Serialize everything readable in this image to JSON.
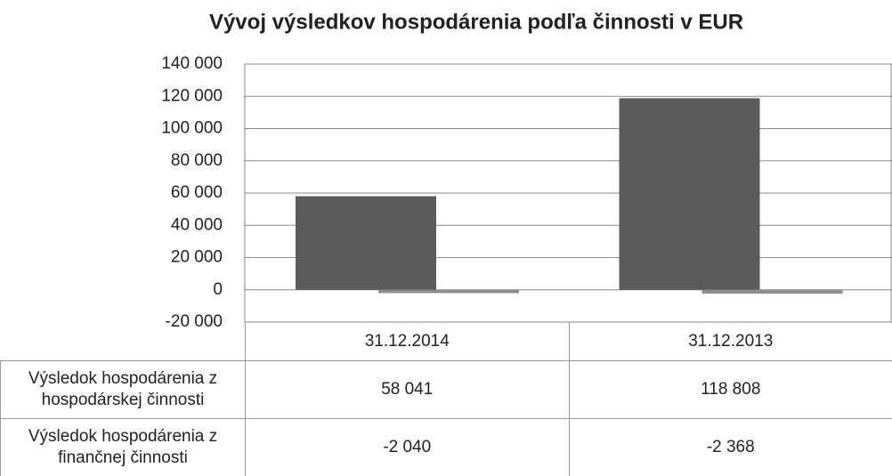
{
  "chart_data": {
    "type": "bar",
    "title": "Vývoj výsledkov hospodárenia podľa činnosti v EUR",
    "categories": [
      "31.12.2014",
      "31.12.2013"
    ],
    "series": [
      {
        "name": "Výsledok hospodárenia z hospodárskej činnosti",
        "color": "#5b5b5b",
        "values": [
          58041,
          118808
        ],
        "value_labels": [
          "58 041",
          "118 808"
        ]
      },
      {
        "name": "Výsledok hospodárenia z finančnej činnosti",
        "color": "#8e8e8e",
        "values": [
          -2040,
          -2368
        ],
        "value_labels": [
          "-2 040",
          "-2 368"
        ]
      }
    ],
    "ylim": [
      -20000,
      140000
    ],
    "yticks": [
      {
        "value": -20000,
        "label": "-20 000"
      },
      0,
      {
        "value": 20000,
        "label": "20 000"
      },
      {
        "value": 40000,
        "label": "40 000"
      },
      {
        "value": 60000,
        "label": "60 000"
      },
      {
        "value": 80000,
        "label": "80 000"
      },
      {
        "value": 100000,
        "label": "100 000"
      },
      {
        "value": 120000,
        "label": "120 000"
      },
      {
        "value": 140000,
        "label": "140 000"
      }
    ],
    "grid": true
  }
}
